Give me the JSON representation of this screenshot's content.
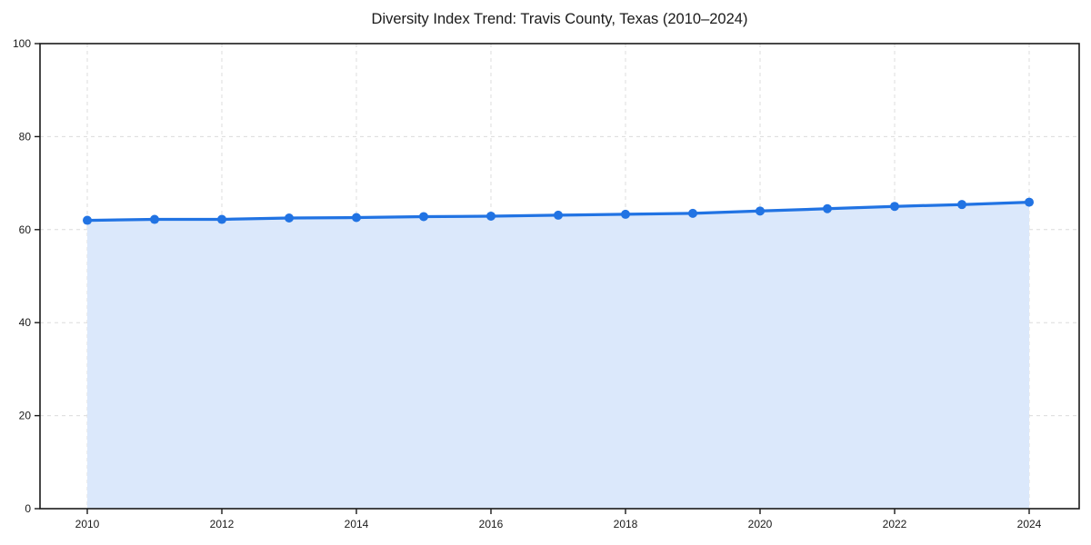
{
  "title": "Diversity Index Trend: Travis County, Texas (2010–2024)",
  "chart_data": {
    "type": "area",
    "x": [
      2010,
      2011,
      2012,
      2013,
      2014,
      2015,
      2016,
      2017,
      2018,
      2019,
      2020,
      2021,
      2022,
      2023,
      2024
    ],
    "series": [
      {
        "name": "Diversity Index",
        "values": [
          62.0,
          62.2,
          62.2,
          62.5,
          62.6,
          62.8,
          62.9,
          63.1,
          63.3,
          63.5,
          64.0,
          64.5,
          65.0,
          65.4,
          65.9
        ]
      }
    ],
    "title": "Diversity Index Trend: Travis County, Texas (2010–2024)",
    "xlabel": "",
    "ylabel": "",
    "xticks": [
      2010,
      2012,
      2014,
      2016,
      2018,
      2020,
      2022,
      2024
    ],
    "yticks": [
      0,
      20,
      40,
      60,
      80,
      100
    ],
    "ylim": [
      0,
      100
    ],
    "xlim": [
      2009.3,
      2024.74
    ],
    "grid": "dashed",
    "legend": "none",
    "colors": {
      "line": "#2173e3",
      "marker": "#2173e3",
      "fill": "#dbe8fb",
      "gridline": "#dcdcdc",
      "spine": "#1a1a1a",
      "tick_label": "#1a1a1a"
    }
  }
}
